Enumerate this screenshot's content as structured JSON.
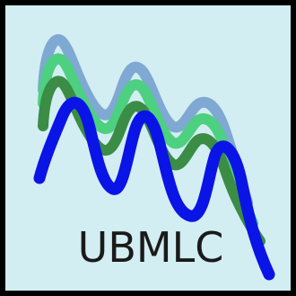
{
  "logo": {
    "wordmark": "UBMLC",
    "colors": {
      "background": "#d2eef2",
      "border": "#000000",
      "wave_light_blue": "#7fa8d2",
      "wave_light_green": "#4dd080",
      "wave_dark_green": "#3b8c45",
      "wave_blue": "#0a14e6"
    }
  }
}
